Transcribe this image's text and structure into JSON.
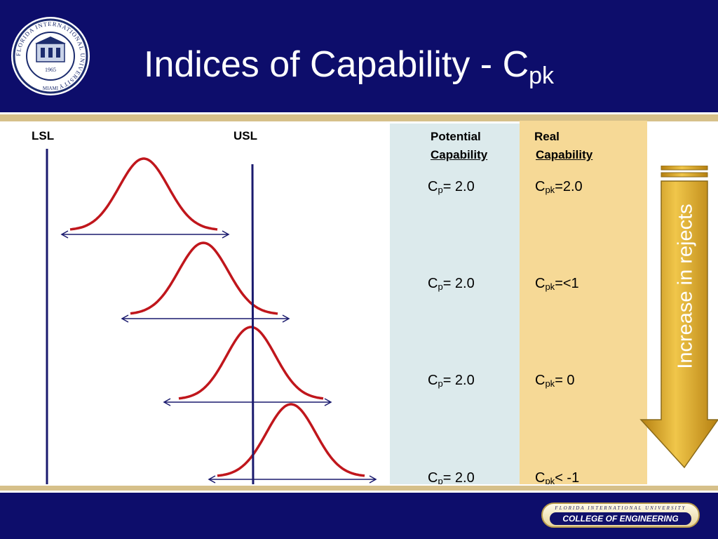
{
  "header": {
    "title": "Indices of Capability - C",
    "title_sub": "pk",
    "background": "#0d0d6b",
    "seal": {
      "icon": "university-seal-icon",
      "ring_text": "FLORIDA INTERNATIONAL UNIVERSITY",
      "bottom_text": "MIAMI",
      "year": "1965"
    }
  },
  "diagram": {
    "lsl_label": "LSL",
    "usl_label": "USL",
    "curve_color": "#c0161c",
    "line_color": "#1a1a6e"
  },
  "columns": {
    "potential": {
      "line1": "Potential",
      "line2": "Capability",
      "background": "#dceaec"
    },
    "real": {
      "line1": "Real",
      "line2": "Capability",
      "background": "#f6d996"
    }
  },
  "rows": [
    {
      "cp_main": "C",
      "cp_sub": "p",
      "cp_value": "= 2.0",
      "cpk_main": "C",
      "cpk_sub": "pk",
      "cpk_value": "=2.0"
    },
    {
      "cp_main": "C",
      "cp_sub": "p",
      "cp_value": "= 2.0",
      "cpk_main": "C",
      "cpk_sub": "pk",
      "cpk_value": "=<1"
    },
    {
      "cp_main": "C",
      "cp_sub": "p",
      "cp_value": "= 2.0",
      "cpk_main": "C",
      "cpk_sub": "pk",
      "cpk_value": "= 0"
    },
    {
      "cp_main": "C",
      "cp_sub": "p",
      "cp_value": "= 2.0",
      "cpk_main": "C",
      "cpk_sub": "pk",
      "cpk_value": "< -1"
    }
  ],
  "arrow": {
    "text": "Increase in rejects",
    "color": "#d9a21a"
  },
  "footer": {
    "badge_top": "FLORIDA INTERNATIONAL UNIVERSITY",
    "badge_main": "COLLEGE OF ENGINEERING"
  }
}
